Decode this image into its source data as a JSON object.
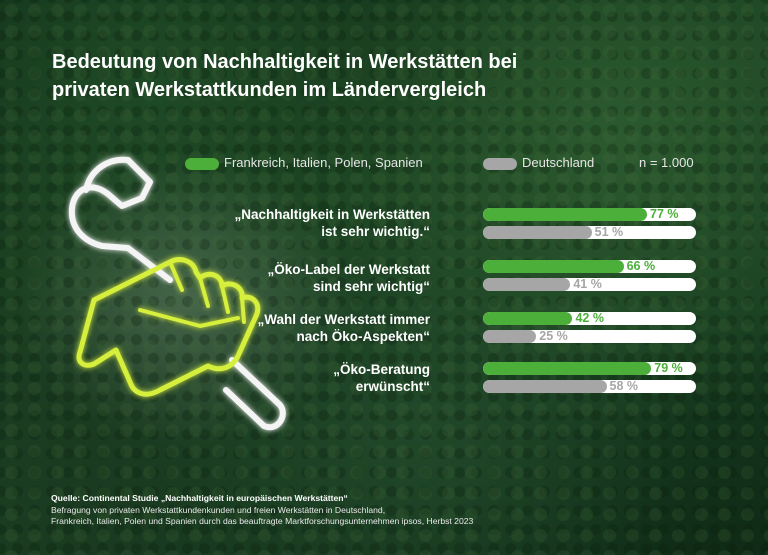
{
  "title": {
    "line1": "Bedeutung von Nachhaltigkeit in Werkstätten bei",
    "line2": "privaten Werkstattkunden im Ländervergleich"
  },
  "legend": {
    "series1": "Frankreich, Italien, Polen, Spanien",
    "series2": "Deutschland",
    "n": "n = 1.000"
  },
  "colors": {
    "series1": "#4caf3a",
    "series2": "#a6a6a6",
    "neon": "#d6ef3c"
  },
  "chart_data": {
    "type": "bar",
    "orientation": "horizontal",
    "title": "Bedeutung von Nachhaltigkeit in Werkstätten bei privaten Werkstattkunden im Ländervergleich",
    "xlim": [
      0,
      100
    ],
    "unit": "%",
    "categories": [
      {
        "line1": "„Nachhaltigkeit in Werkstätten",
        "line2": "ist sehr wichtig.“"
      },
      {
        "line1": "„Öko-Label der Werkstatt",
        "line2": "sind sehr wichtig“"
      },
      {
        "line1": "„Wahl der Werkstatt immer",
        "line2": "nach Öko-Aspekten“"
      },
      {
        "line1": "„Öko-Beratung",
        "line2": "erwünscht“"
      }
    ],
    "series": [
      {
        "name": "Frankreich, Italien, Polen, Spanien",
        "values": [
          77,
          66,
          42,
          79
        ],
        "labels": [
          "77 %",
          "66 %",
          "42 %",
          "79 %"
        ]
      },
      {
        "name": "Deutschland",
        "values": [
          51,
          41,
          25,
          58
        ],
        "labels": [
          "51 %",
          "41 %",
          "25 %",
          "58 %"
        ]
      }
    ]
  },
  "source": {
    "heading": "Quelle: Continental Studie „Nachhaltigkeit in europäischen Werkstätten“",
    "line1": "Befragung von privaten Werkstattkundenkunden und freien Werkstätten in Deutschland,",
    "line2": "Frankreich, Italien, Polen und Spanien durch das beauftragte Marktforschungsunternehmen ipsos, Herbst 2023"
  }
}
